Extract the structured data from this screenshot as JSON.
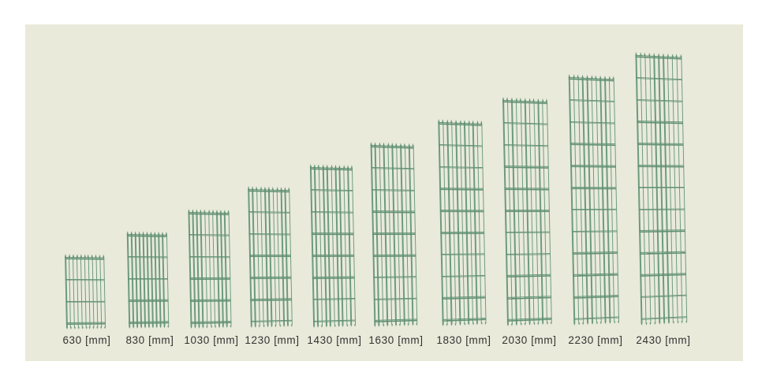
{
  "diagram": {
    "unit": "mm",
    "panels": [
      {
        "height_mm": 630,
        "label": "630 [mm]"
      },
      {
        "height_mm": 830,
        "label": "830 [mm]"
      },
      {
        "height_mm": 1030,
        "label": "1030 [mm]"
      },
      {
        "height_mm": 1230,
        "label": "1230 [mm]"
      },
      {
        "height_mm": 1430,
        "label": "1430 [mm]"
      },
      {
        "height_mm": 1630,
        "label": "1630 [mm]"
      },
      {
        "height_mm": 1830,
        "label": "1830 [mm]"
      },
      {
        "height_mm": 2030,
        "label": "2030 [mm]"
      },
      {
        "height_mm": 2230,
        "label": "2230 [mm]"
      },
      {
        "height_mm": 2430,
        "label": "2430 [mm]"
      }
    ],
    "colors": {
      "page_background": "#ffffff",
      "canvas_background": "#e9eada",
      "wire": "#6c9a7e",
      "wire_dark": "#5f8f71",
      "wire_tip": "#568a68",
      "label_text": "#333333"
    }
  }
}
